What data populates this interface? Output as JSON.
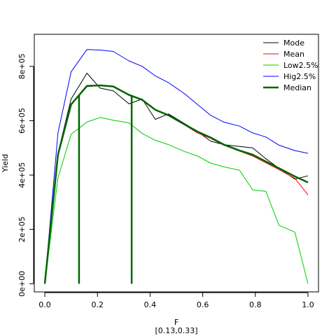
{
  "chart_data": {
    "type": "line",
    "xlabel": "F",
    "sublabel": "[0.13,0.33]",
    "ylabel": "Yield",
    "xlim": [
      -0.04,
      1.04
    ],
    "ylim": [
      -30000,
      918000
    ],
    "xticks": [
      0.0,
      0.2,
      0.4,
      0.6,
      0.8,
      1.0
    ],
    "xtick_labels": [
      "0.0",
      "0.2",
      "0.4",
      "0.6",
      "0.8",
      "1.0"
    ],
    "yticks": [
      0,
      200000,
      400000,
      600000,
      800000
    ],
    "ytick_labels": [
      "0e+00",
      "2e+05",
      "4e+05",
      "6e+05",
      "8e+05"
    ],
    "legend_position": "top-right",
    "x": [
      0.0,
      0.05,
      0.1,
      0.16,
      0.21,
      0.26,
      0.32,
      0.37,
      0.42,
      0.47,
      0.53,
      0.58,
      0.63,
      0.68,
      0.74,
      0.79,
      0.84,
      0.89,
      0.95,
      1.0
    ],
    "series": [
      {
        "name": "Mode",
        "color": "#000000",
        "width": 1,
        "values": [
          0,
          480000,
          680000,
          775000,
          720000,
          710000,
          662000,
          680000,
          605000,
          625000,
          590000,
          560000,
          525000,
          512000,
          505000,
          500000,
          460000,
          425000,
          385000,
          397000
        ]
      },
      {
        "name": "Mean",
        "color": "#ff0000",
        "width": 1,
        "values": [
          0,
          470000,
          660000,
          725000,
          730000,
          725000,
          695000,
          675000,
          640000,
          618000,
          585000,
          555000,
          535000,
          510000,
          488000,
          470000,
          445000,
          420000,
          388000,
          327000
        ]
      },
      {
        "name": "Low2.5%",
        "color": "#00cc00",
        "width": 1,
        "values": [
          0,
          390000,
          550000,
          595000,
          612000,
          602000,
          592000,
          553000,
          528000,
          512000,
          487000,
          470000,
          444000,
          430000,
          418000,
          345000,
          340000,
          215000,
          190000,
          0
        ]
      },
      {
        "name": "Hig2.5%",
        "color": "#0000ff",
        "width": 1,
        "values": [
          0,
          555000,
          780000,
          862000,
          860000,
          855000,
          820000,
          800000,
          765000,
          740000,
          700000,
          660000,
          620000,
          595000,
          580000,
          555000,
          540000,
          510000,
          490000,
          480000
        ]
      },
      {
        "name": "Median",
        "color": "#006400",
        "width": 2.5,
        "values": [
          0,
          475000,
          660000,
          728000,
          730000,
          726000,
          695000,
          677000,
          640000,
          620000,
          587000,
          560000,
          538000,
          512000,
          490000,
          475000,
          450000,
          425000,
          395000,
          373000
        ]
      }
    ],
    "vlines": [
      {
        "x": 0.13,
        "y_top": 695000,
        "color": "#006400"
      },
      {
        "x": 0.33,
        "y_top": 695000,
        "color": "#006400"
      }
    ]
  }
}
